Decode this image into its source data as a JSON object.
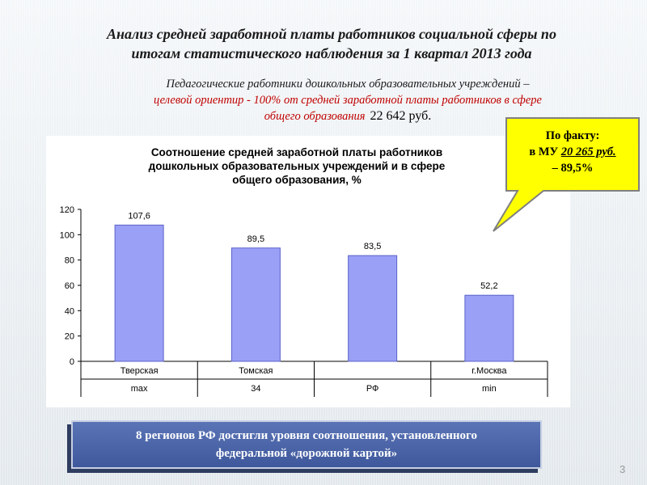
{
  "slide": {
    "title_line1": "Анализ средней заработной платы работников социальной сферы по",
    "title_line2": "итогам  статистического наблюдения за 1 квартал 2013 года",
    "subtitle_line1": "Педагогические работники дошкольных образовательных учреждений –",
    "subtitle_line2": "целевой ориентир -  100% от средней заработной платы работников в сфере",
    "subtitle_line3": "общего образования",
    "subtitle_sum": "22 642 руб.",
    "page_number": "3"
  },
  "callout": {
    "line1": "По факту:",
    "line2_prefix": "в МУ ",
    "line2_value": "20 265 руб.",
    "line3": "– 89,5%",
    "fill_color": "#ffff00",
    "border_color": "#7f7f7f"
  },
  "banner": {
    "line1": "8 регионов РФ достигли уровня соотношения, установленного",
    "line2": "федеральной «дорожной картой»"
  },
  "chart_data": {
    "type": "bar",
    "title_line1": "Соотношение средней заработной платы работников",
    "title_line2": "дошкольных образовательных учреждений и в сфере",
    "title_line3": "общего образования, %",
    "categories": [
      "Тверская",
      "Томская",
      "",
      "г.Москва"
    ],
    "category_sublabels": [
      "max",
      "34",
      "РФ",
      "min"
    ],
    "values": [
      107.6,
      89.5,
      83.5,
      52.2
    ],
    "data_labels": [
      "107,6",
      "89,5",
      "83,5",
      "52,2"
    ],
    "ylim": [
      0,
      120
    ],
    "yticks": [
      0,
      20,
      40,
      60,
      80,
      100,
      120
    ],
    "bar_color": "#9aa0f5",
    "bar_edge_color": "#5c63c9",
    "grid": false,
    "legend": "none"
  }
}
